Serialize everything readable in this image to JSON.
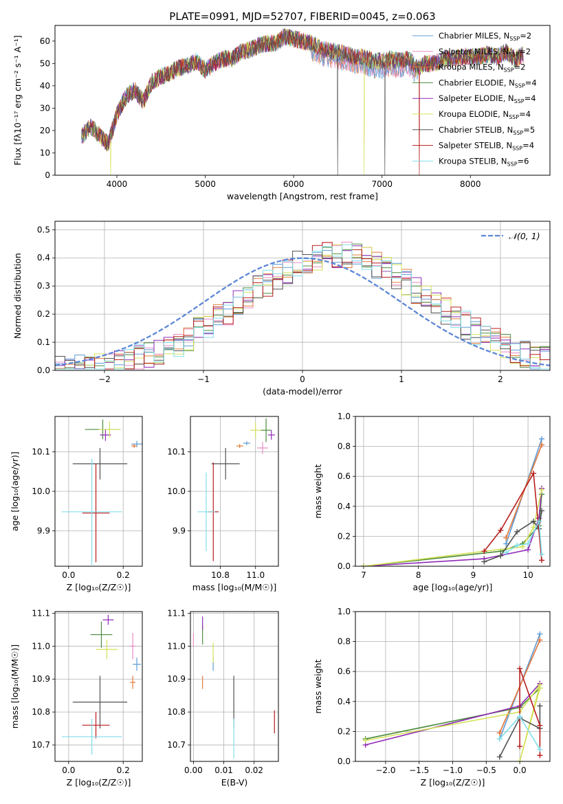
{
  "figure": {
    "title": "PLATE=0991, MJD=52707, FIBERID=0045, z=0.063"
  },
  "models": [
    {
      "name": "Chabrier MILES",
      "nssp": "2",
      "color": "#5b9bd5"
    },
    {
      "name": "Salpeter MILES",
      "nssp": "2",
      "color": "#e78ac3"
    },
    {
      "name": "Kroupa MILES",
      "nssp": "2",
      "color": "#e07b39"
    },
    {
      "name": "Chabrier ELODIE",
      "nssp": "4",
      "color": "#4b8b3b"
    },
    {
      "name": "Salpeter ELODIE",
      "nssp": "4",
      "color": "#8e2ab5"
    },
    {
      "name": "Kroupa ELODIE",
      "nssp": "4",
      "color": "#d4e157"
    },
    {
      "name": "Chabrier STELIB",
      "nssp": "5",
      "color": "#505050"
    },
    {
      "name": "Salpeter STELIB",
      "nssp": "4",
      "color": "#b71c1c"
    },
    {
      "name": "Kroupa STELIB",
      "nssp": "6",
      "color": "#80deea"
    }
  ],
  "chart_data": [
    {
      "id": "spectrum",
      "type": "line",
      "xlabel": "wavelength [Angstrom, rest frame]",
      "ylabel": "Flux [fλ10⁻¹⁷ erg cm⁻² s⁻¹ A⁻¹]",
      "xlim": [
        3300,
        8900
      ],
      "ylim": [
        0,
        67
      ],
      "xticks": [
        "4000",
        "5000",
        "6000",
        "7000",
        "8000"
      ],
      "yticks": [
        "0",
        "10",
        "20",
        "30",
        "40",
        "50",
        "60"
      ],
      "legend": "top-right",
      "grid": false,
      "x": [
        3600,
        3700,
        3800,
        3900,
        4000,
        4100,
        4200,
        4300,
        4400,
        4500,
        4600,
        4700,
        4800,
        4900,
        5000,
        5100,
        5200,
        5300,
        5400,
        5500,
        5600,
        5700,
        5800,
        5900,
        6000,
        6100,
        6200,
        6300,
        6400,
        6500,
        6600,
        6700,
        6800,
        6900,
        7000,
        7100,
        7200,
        7300,
        7400,
        7500,
        7600,
        7700,
        7800,
        7900,
        8000,
        8100,
        8200,
        8300,
        8400,
        8500,
        8600
      ],
      "y": [
        17,
        22,
        18,
        14,
        27,
        35,
        38,
        33,
        42,
        44,
        46,
        48,
        49,
        51,
        47,
        50,
        52,
        52,
        55,
        56,
        58,
        59,
        59,
        62,
        61,
        60,
        59,
        57,
        56,
        55,
        54,
        53,
        53,
        51,
        51,
        52,
        51,
        52,
        48,
        50,
        50,
        52,
        52,
        53,
        53,
        53,
        54,
        53,
        55,
        52,
        54
      ],
      "dropouts": [
        {
          "x": 3930,
          "series": "Kroupa ELODIE"
        },
        {
          "x": 6500,
          "series": "Chabrier STELIB"
        },
        {
          "x": 6800,
          "series": "Kroupa ELODIE"
        },
        {
          "x": 7030,
          "series": "Chabrier STELIB"
        },
        {
          "x": 7420,
          "series": "Salpeter STELIB"
        }
      ]
    },
    {
      "id": "residuals",
      "type": "line",
      "xlabel": "(data-model)/error",
      "ylabel": "Normed distribution",
      "xlim": [
        -2.5,
        2.5
      ],
      "ylim": [
        0,
        0.53
      ],
      "xticks": [
        "−2",
        "−1",
        "0",
        "1",
        "2"
      ],
      "yticks": [
        "0.0",
        "0.1",
        "0.2",
        "0.3",
        "0.4",
        "0.5"
      ],
      "grid": true,
      "legend": "top-right",
      "legend_label": "𝒩(0, 1)",
      "normal": {
        "mean": 0,
        "sigma": 1,
        "color": "#5b86d6"
      },
      "bin_width": 0.1,
      "bin_start": -2.5
    },
    {
      "id": "age-vs-Z",
      "type": "scatter",
      "xlabel": "Z [log₁₀(Z/Z☉)]",
      "ylabel": "age  [log₁₀(age/yr)]",
      "xlim": [
        -0.05,
        0.27
      ],
      "ylim": [
        9.81,
        10.19
      ],
      "xticks": [
        "0.0",
        "0.2"
      ],
      "yticks": [
        "9.9",
        "10.0",
        "10.1"
      ],
      "grid": true,
      "points": [
        {
          "x": 0.25,
          "y": 10.12,
          "xerr": 0.02,
          "yerr": 0.008
        },
        {
          "x": 0.24,
          "y": 10.115,
          "xerr": 0.01,
          "yerr": 0.005
        },
        {
          "x": 0.24,
          "y": 10.115,
          "xerr": 0.01,
          "yerr": 0.005
        },
        {
          "x": 0.125,
          "y": 10.157,
          "xerr": 0.065,
          "yerr": 0.025
        },
        {
          "x": 0.135,
          "y": 10.143,
          "xerr": 0.02,
          "yerr": 0.015
        },
        {
          "x": 0.15,
          "y": 10.157,
          "xerr": 0.04,
          "yerr": 0.02
        },
        {
          "x": 0.115,
          "y": 10.07,
          "xerr": 0.1,
          "yerr": 0.04
        },
        {
          "x": 0.1,
          "y": 9.945,
          "xerr": 0.05,
          "yerr": 0.125
        },
        {
          "x": 0.085,
          "y": 9.948,
          "xerr": 0.11,
          "yerr": 0.135
        }
      ]
    },
    {
      "id": "age-vs-mass",
      "type": "scatter",
      "xlabel": "mass [log₁₀(M/M☉)]",
      "ylabel": "",
      "xlim": [
        10.63,
        11.13
      ],
      "ylim": [
        9.81,
        10.19
      ],
      "xticks": [
        "10.8",
        "11.0"
      ],
      "yticks": [
        "9.9",
        "10.0",
        "10.1"
      ],
      "grid": true,
      "points": [
        {
          "x": 10.95,
          "y": 10.122,
          "xerr": 0.02,
          "yerr": 0.005
        },
        {
          "x": 11.04,
          "y": 10.11,
          "xerr": 0.03,
          "yerr": 0.015
        },
        {
          "x": 10.91,
          "y": 10.115,
          "xerr": 0.02,
          "yerr": 0.005
        },
        {
          "x": 11.06,
          "y": 10.155,
          "xerr": 0.03,
          "yerr": 0.03
        },
        {
          "x": 11.09,
          "y": 10.143,
          "xerr": 0.02,
          "yerr": 0.012
        },
        {
          "x": 11.0,
          "y": 10.155,
          "xerr": 0.03,
          "yerr": 0.02
        },
        {
          "x": 10.83,
          "y": 10.07,
          "xerr": 0.08,
          "yerr": 0.04
        },
        {
          "x": 10.76,
          "y": 9.948,
          "xerr": 0.03,
          "yerr": 0.125
        },
        {
          "x": 10.72,
          "y": 9.948,
          "xerr": 0.05,
          "yerr": 0.1
        }
      ]
    },
    {
      "id": "weight-vs-age",
      "type": "line",
      "xlabel": "age  [log₁₀(age/yr)]",
      "ylabel": "mass weight",
      "xlim": [
        6.85,
        10.4
      ],
      "ylim": [
        0,
        1.0
      ],
      "xticks": [
        "7",
        "8",
        "9",
        "10"
      ],
      "yticks": [
        "0.0",
        "0.2",
        "0.4",
        "0.6",
        "0.8",
        "1.0"
      ],
      "grid": true,
      "series": [
        {
          "name": "Chabrier MILES",
          "x": [
            9.6,
            10.25
          ],
          "y": [
            0.15,
            0.85
          ]
        },
        {
          "name": "Salpeter MILES",
          "x": [
            9.6,
            10.25
          ],
          "y": [
            0.19,
            0.81
          ]
        },
        {
          "name": "Kroupa MILES",
          "x": [
            9.6,
            10.25
          ],
          "y": [
            0.19,
            0.81
          ]
        },
        {
          "name": "Chabrier ELODIE",
          "x": [
            7.0,
            9.5,
            9.9,
            10.2,
            10.25
          ],
          "y": [
            0.0,
            0.1,
            0.15,
            0.27,
            0.48
          ]
        },
        {
          "name": "Salpeter ELODIE",
          "x": [
            7.0,
            9.2,
            10.0,
            10.2,
            10.25
          ],
          "y": [
            0.0,
            0.05,
            0.11,
            0.32,
            0.52
          ]
        },
        {
          "name": "Kroupa ELODIE",
          "x": [
            7.0,
            9.2,
            9.9,
            10.1,
            10.25
          ],
          "y": [
            0.0,
            0.1,
            0.13,
            0.26,
            0.51
          ]
        },
        {
          "name": "Chabrier STELIB",
          "x": [
            9.2,
            9.5,
            9.8,
            10.1,
            10.2,
            10.25
          ],
          "y": [
            0.03,
            0.07,
            0.23,
            0.3,
            0.25,
            0.37
          ]
        },
        {
          "name": "Salpeter STELIB",
          "x": [
            9.2,
            9.5,
            10.1,
            10.25
          ],
          "y": [
            0.1,
            0.24,
            0.62,
            0.04
          ]
        },
        {
          "name": "Kroupa STELIB",
          "x": [
            9.6,
            9.8,
            10.0,
            10.2,
            10.25
          ],
          "y": [
            0.09,
            0.14,
            0.15,
            0.3,
            0.08
          ]
        }
      ]
    },
    {
      "id": "mass-vs-Z",
      "type": "scatter",
      "xlabel": "Z [log₁₀(Z/Z☉)]",
      "ylabel": "mass [log₁₀(M/M☉)]",
      "xlim": [
        -0.05,
        0.27
      ],
      "ylim": [
        10.65,
        11.105
      ],
      "xticks": [
        "0.0",
        "0.2"
      ],
      "yticks": [
        "10.7",
        "10.8",
        "10.9",
        "11.0",
        "11.1"
      ],
      "grid": true,
      "points": [
        {
          "x": 0.25,
          "y": 10.945,
          "xerr": 0.015,
          "yerr": 0.02
        },
        {
          "x": 0.235,
          "y": 11.0,
          "xerr": 0.01,
          "yerr": 0.04
        },
        {
          "x": 0.235,
          "y": 10.89,
          "xerr": 0.01,
          "yerr": 0.02
        },
        {
          "x": 0.12,
          "y": 11.035,
          "xerr": 0.04,
          "yerr": 0.04
        },
        {
          "x": 0.145,
          "y": 11.08,
          "xerr": 0.02,
          "yerr": 0.015
        },
        {
          "x": 0.14,
          "y": 10.99,
          "xerr": 0.04,
          "yerr": 0.03
        },
        {
          "x": 0.115,
          "y": 10.83,
          "xerr": 0.1,
          "yerr": 0.08
        },
        {
          "x": 0.1,
          "y": 10.76,
          "xerr": 0.05,
          "yerr": 0.04
        },
        {
          "x": 0.085,
          "y": 10.725,
          "xerr": 0.11,
          "yerr": 0.055
        }
      ]
    },
    {
      "id": "mass-vs-EBV",
      "type": "scatter",
      "xlabel": "E(B-V)",
      "ylabel": "",
      "xlim": [
        -0.001,
        0.028
      ],
      "ylim": [
        10.65,
        11.105
      ],
      "xticks": [
        "0.00",
        "0.01",
        "0.02"
      ],
      "yticks": [
        "10.7",
        "10.8",
        "10.9",
        "11.0",
        "11.1"
      ],
      "grid": true,
      "points": [
        {
          "x": 0.0065,
          "y": 10.945,
          "xerr": 0.0,
          "yerr": 0.02
        },
        {
          "x": 0.0,
          "y": 11.02,
          "xerr": 0.0,
          "yerr": 0.02
        },
        {
          "x": 0.003,
          "y": 10.89,
          "xerr": 0.0,
          "yerr": 0.02
        },
        {
          "x": 0.003,
          "y": 11.035,
          "xerr": 0.0,
          "yerr": 0.03
        },
        {
          "x": 0.003,
          "y": 11.07,
          "xerr": 0.0,
          "yerr": 0.02
        },
        {
          "x": 0.0065,
          "y": 10.98,
          "xerr": 0.0,
          "yerr": 0.03
        },
        {
          "x": 0.0133,
          "y": 10.83,
          "xerr": 0.0,
          "yerr": 0.08
        },
        {
          "x": 0.0267,
          "y": 10.77,
          "xerr": 0.0,
          "yerr": 0.035
        },
        {
          "x": 0.0133,
          "y": 10.72,
          "xerr": 0.0,
          "yerr": 0.06
        }
      ]
    },
    {
      "id": "weight-vs-Z",
      "type": "line",
      "xlabel": "Z [log₁₀(Z/Z☉)]",
      "ylabel": "mass weight",
      "xlim": [
        -2.45,
        0.45
      ],
      "ylim": [
        0,
        1.0
      ],
      "xticks": [
        "−2.0",
        "−1.5",
        "−1.0",
        "−0.5",
        "0.0"
      ],
      "yticks": [
        "0.0",
        "0.2",
        "0.4",
        "0.6",
        "0.8",
        "1.0"
      ],
      "grid": true,
      "series": [
        {
          "name": "Chabrier MILES",
          "x": [
            -0.3,
            0.3
          ],
          "y": [
            0.15,
            0.85
          ]
        },
        {
          "name": "Salpeter MILES",
          "x": [
            -0.3,
            0.3
          ],
          "y": [
            0.19,
            0.81
          ]
        },
        {
          "name": "Kroupa MILES",
          "x": [
            -0.3,
            0.3
          ],
          "y": [
            0.19,
            0.81
          ]
        },
        {
          "name": "Chabrier ELODIE",
          "x": [
            -2.3,
            0.0,
            0.3
          ],
          "y": [
            0.15,
            0.36,
            0.49
          ]
        },
        {
          "name": "Salpeter ELODIE",
          "x": [
            -2.3,
            0.0,
            0.3
          ],
          "y": [
            0.11,
            0.37,
            0.52
          ]
        },
        {
          "name": "Kroupa ELODIE",
          "x": [
            -2.3,
            0.0,
            0.3,
            0.0,
            0.3
          ],
          "y": [
            0.14,
            0.33,
            0.51,
            0.0,
            0.49
          ]
        },
        {
          "name": "Chabrier STELIB",
          "x": [
            -0.3,
            0.0,
            0.3,
            0.3
          ],
          "y": [
            0.03,
            0.29,
            0.22,
            0.37
          ]
        },
        {
          "name": "Salpeter STELIB",
          "x": [
            0.0,
            0.0,
            0.3,
            0.3
          ],
          "y": [
            0.1,
            0.62,
            0.24,
            0.04
          ]
        },
        {
          "name": "Kroupa STELIB",
          "x": [
            -0.3,
            0.0,
            0.3
          ],
          "y": [
            0.15,
            0.3,
            0.08
          ]
        }
      ]
    }
  ]
}
